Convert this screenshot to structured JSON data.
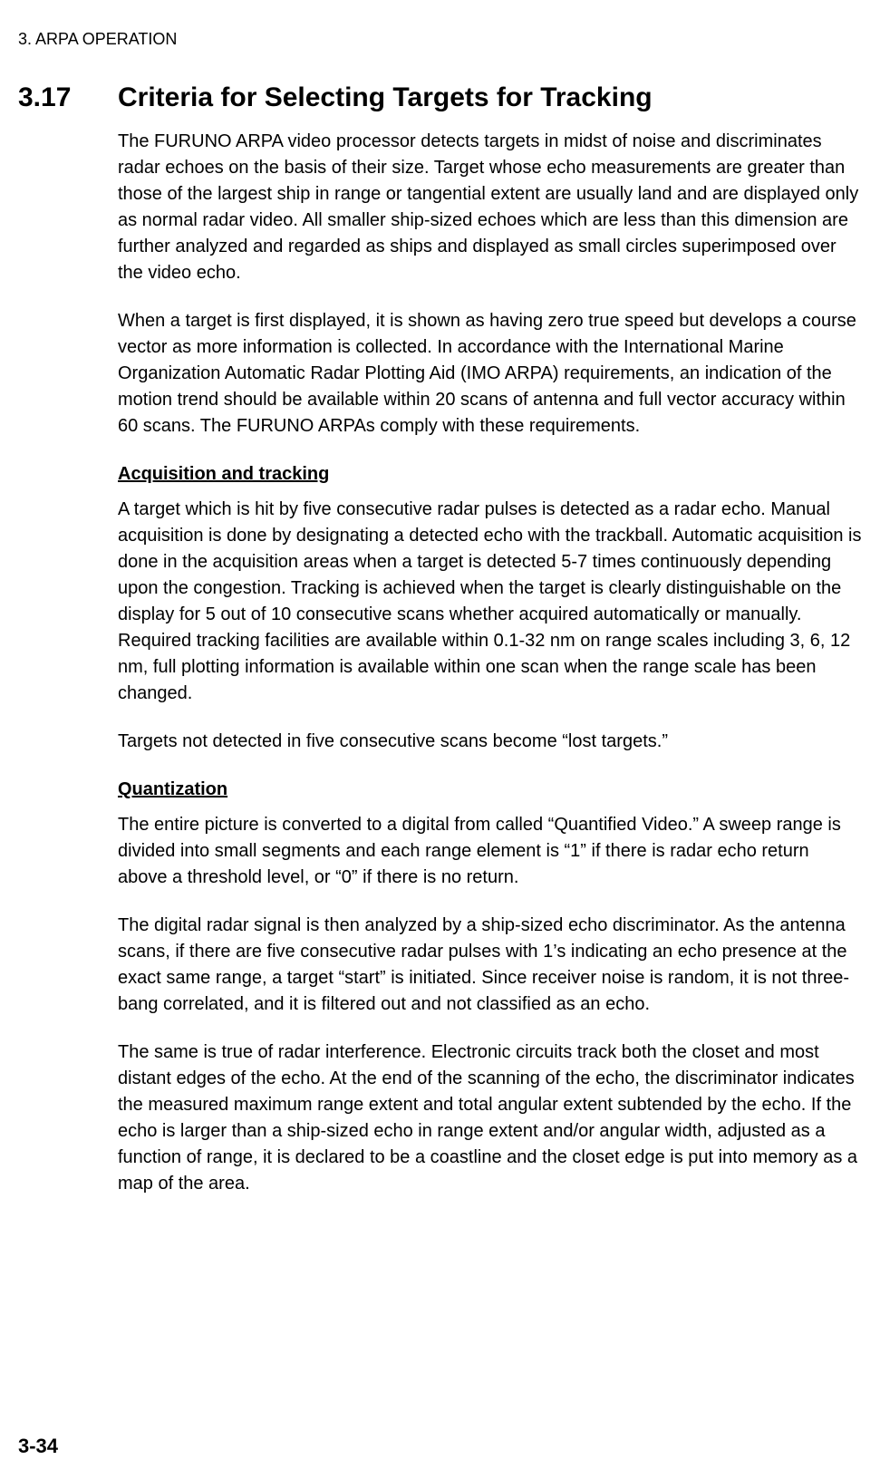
{
  "header": "3. ARPA OPERATION",
  "section_number": "3.17",
  "section_title": "Criteria for Selecting Targets for Tracking",
  "para1": "The FURUNO ARPA video processor detects targets in midst of noise and discriminates radar echoes on the basis of their size. Target whose echo measurements are greater than those of the largest ship in range or tangential extent are usually land and are displayed only as normal radar video. All smaller ship-sized echoes which are less than this dimension are further analyzed and regarded as ships and displayed as small circles superimposed over the video echo.",
  "para2": "When a target is first displayed, it is shown as having zero true speed but develops a course vector as more information is collected. In accordance with the International Marine Organization Automatic Radar Plotting Aid (IMO ARPA) requirements, an indication of the motion trend should be available within 20 scans of antenna and full vector accuracy within 60 scans. The FURUNO ARPAs comply with these requirements.",
  "sub1_heading": "Acquisition and tracking",
  "sub1_para1": "A target which is hit by five consecutive radar pulses is detected as a radar echo. Manual acquisition is done by designating a detected echo with the trackball. Automatic acquisition is done in the acquisition areas when a target is detected 5-7 times continuously depending upon the congestion. Tracking is achieved when the target is clearly distinguishable on the display for 5 out of 10 consecutive scans whether acquired automatically or manually. Required tracking facilities are available within 0.1-32 nm on range scales including 3, 6, 12 nm, full plotting information is available within one scan when the range scale has been changed.",
  "sub1_para2": "Targets not detected in five consecutive scans become “lost targets.”",
  "sub2_heading": "Quantization",
  "sub2_para1": "The entire picture is converted to a digital from called “Quantified Video.” A sweep range is divided into small segments and each range element is “1” if there is radar echo return above a threshold level, or “0” if there is no return.",
  "sub2_para2": "The digital radar signal is then analyzed by a ship-sized echo discriminator. As the antenna scans, if there are five consecutive radar pulses with 1’s indicating an echo presence at the exact same range, a target “start” is initiated. Since receiver noise is random, it is not three-bang correlated, and it is filtered out and not classified as an echo.",
  "sub2_para3": "The same is true of radar interference. Electronic circuits track both the closet and most distant edges of the echo. At the end of the scanning of the echo, the discriminator indicates the measured maximum range extent and total angular extent subtended by the echo. If the echo is larger than a ship-sized echo in range extent and/or angular width, adjusted as a function of range, it is declared to be a coastline and the closet edge is put into memory as a map of the area.",
  "page_number": "3-34"
}
